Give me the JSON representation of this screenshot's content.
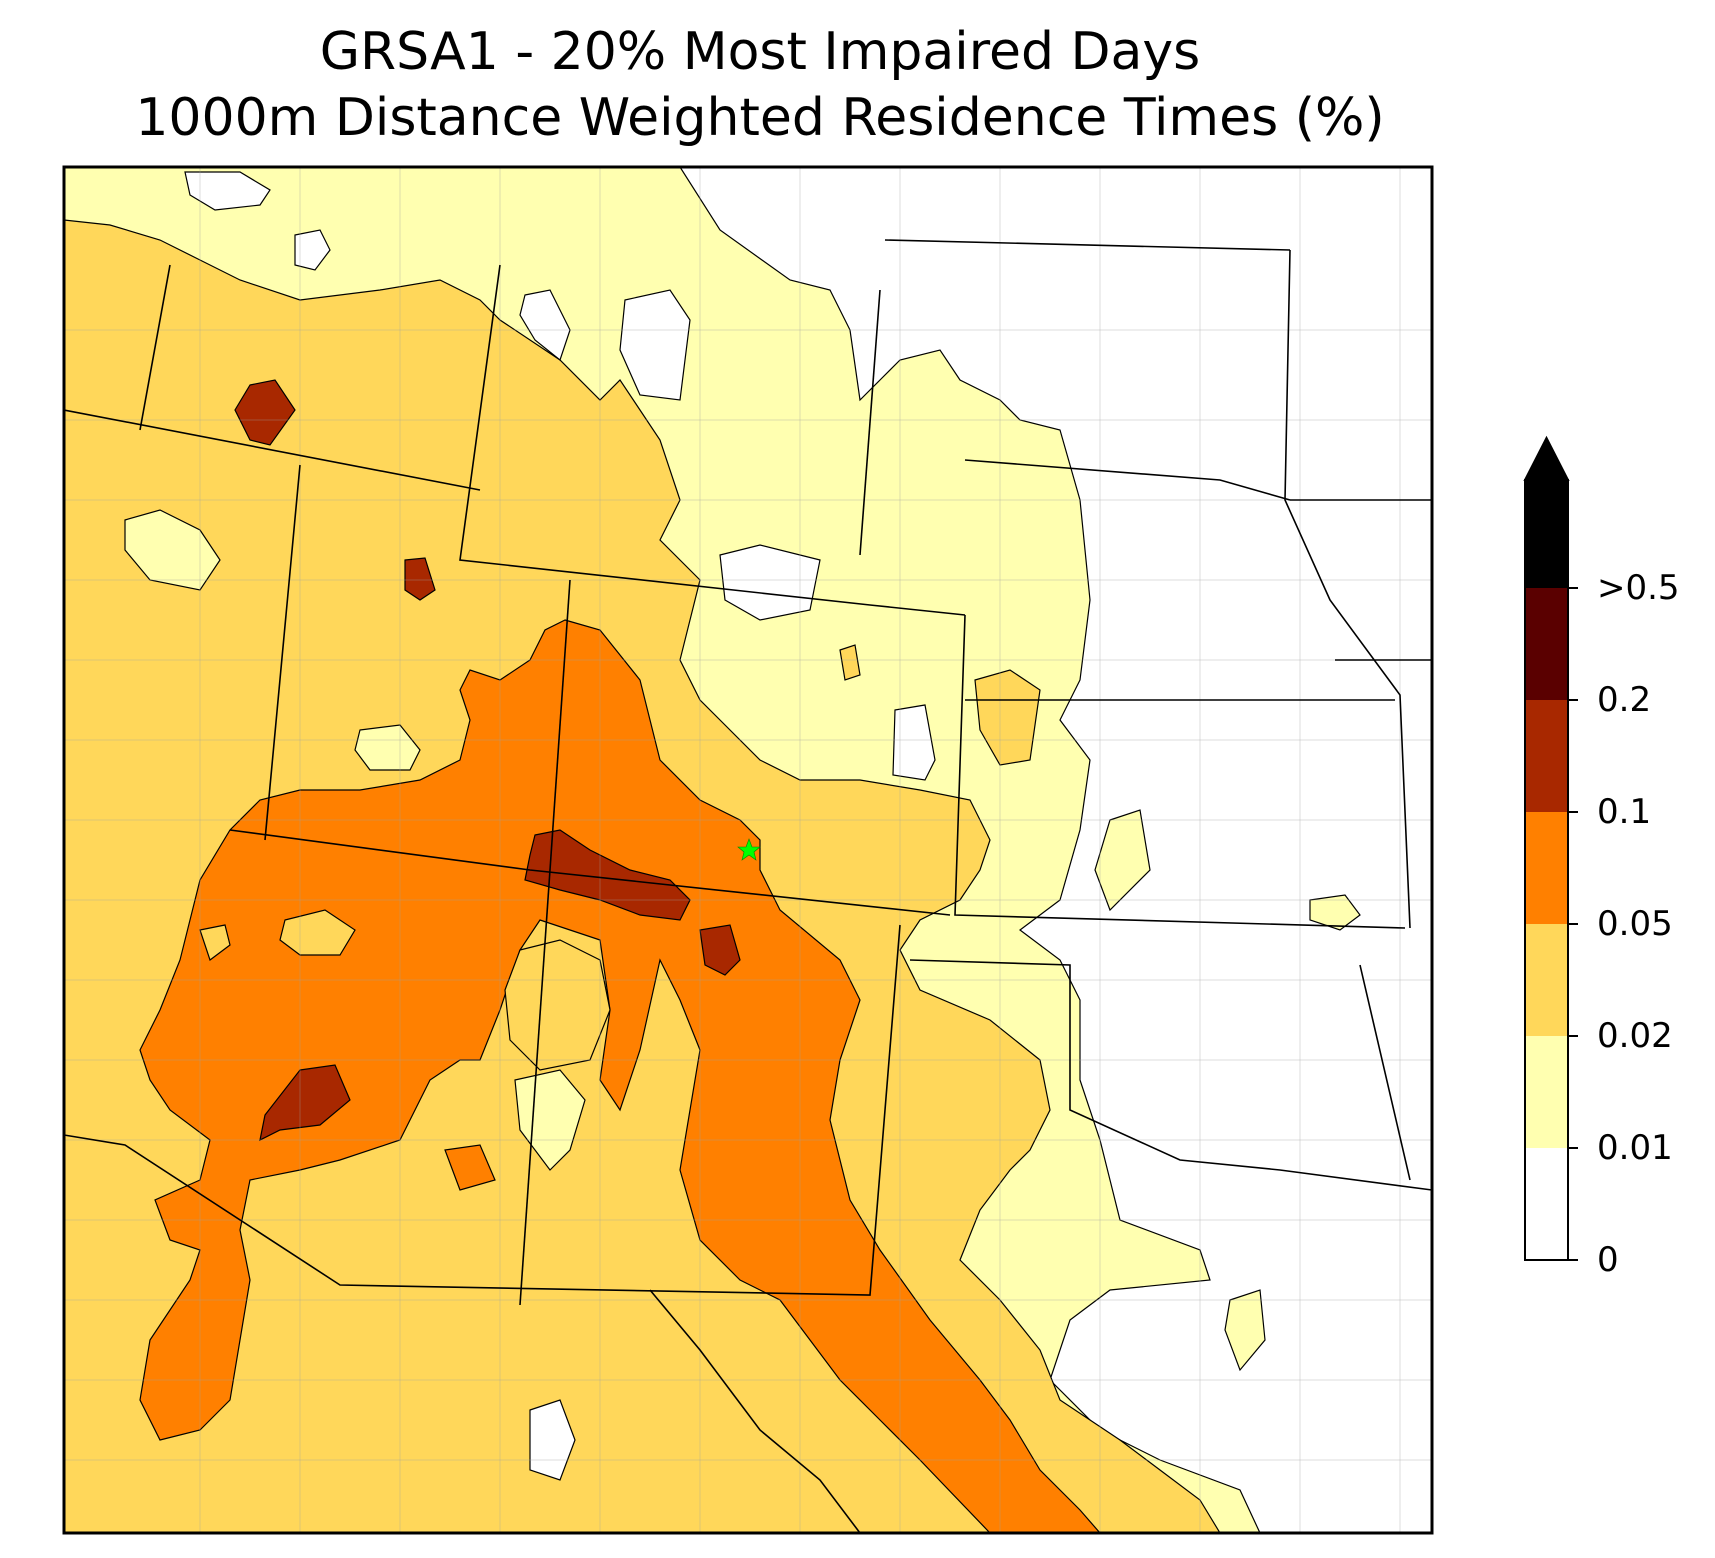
{
  "title": {
    "line1": "GRSA1 - 20% Most Impaired Days",
    "line2": "1000m Distance Weighted Residence Times (%)"
  },
  "colorbar": {
    "levels": [
      {
        "label": "0",
        "color": "#ffffff"
      },
      {
        "label": "0.01",
        "color": "#ffffb0"
      },
      {
        "label": "0.02",
        "color": "#ffd75a"
      },
      {
        "label": "0.05",
        "color": "#ff8000"
      },
      {
        "label": "0.1",
        "color": "#a82800"
      },
      {
        "label": "0.2",
        "color": "#5a0000"
      },
      {
        "label": ">0.5",
        "color": "#000000"
      }
    ],
    "extend_color": "#000000"
  },
  "site_marker": {
    "name": "GRSA1",
    "color": "#00ff00",
    "symbol": "star"
  }
}
